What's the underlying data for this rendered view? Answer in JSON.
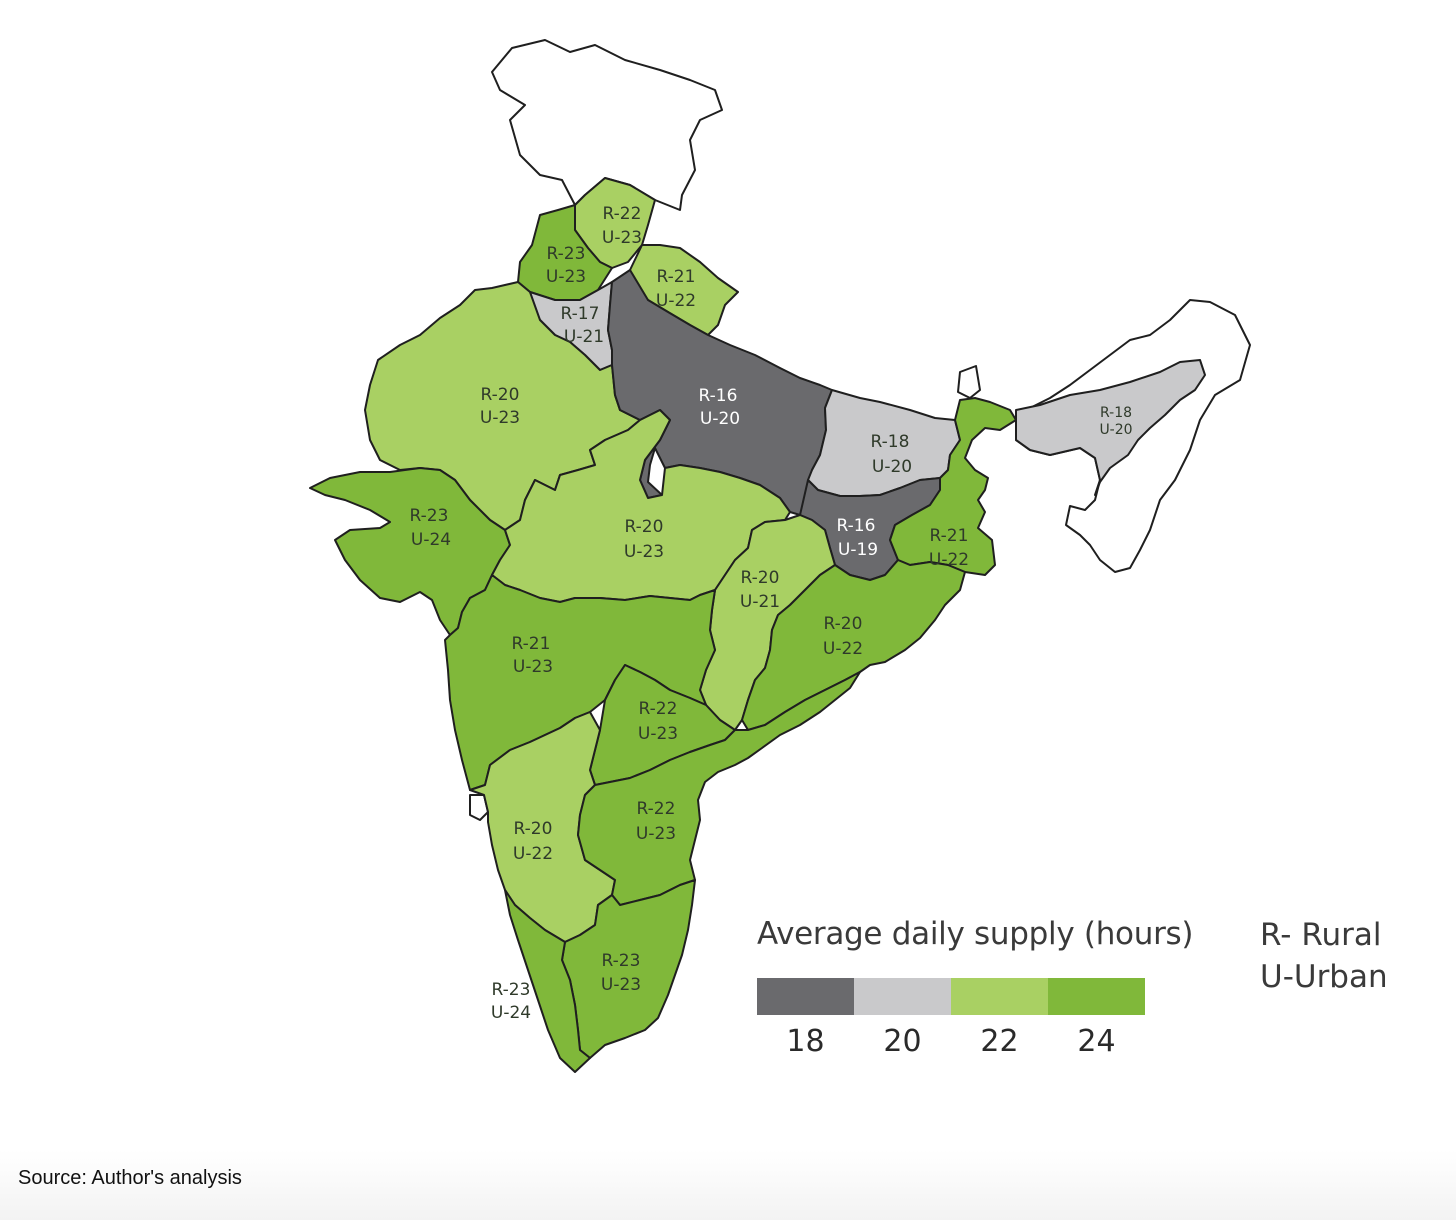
{
  "legend": {
    "title": "Average daily supply (hours)",
    "key_rural": "R- Rural",
    "key_urban": "U-Urban",
    "ticks": [
      "18",
      "20",
      "22",
      "24"
    ],
    "colors": [
      "#6a6a6d",
      "#c9c9cb",
      "#a9d063",
      "#80b83a"
    ]
  },
  "source": "Source: Author's analysis",
  "colors": {
    "dark_grey": "#6a6a6d",
    "light_grey": "#c9c9cb",
    "light_green": "#a9d063",
    "green": "#80b83a",
    "no_data": "#ffffff"
  },
  "regions": [
    {
      "id": "himachal",
      "rural": "R-22",
      "urban": "U-23"
    },
    {
      "id": "punjab",
      "rural": "R-23",
      "urban": "U-23"
    },
    {
      "id": "uttarakhand",
      "rural": "R-21",
      "urban": "U-22"
    },
    {
      "id": "haryana",
      "rural": "R-17",
      "urban": "U-21"
    },
    {
      "id": "rajasthan",
      "rural": "R-20",
      "urban": "U-23"
    },
    {
      "id": "uttar-pradesh",
      "rural": "R-16",
      "urban": "U-20"
    },
    {
      "id": "bihar",
      "rural": "R-18",
      "urban": "U-20"
    },
    {
      "id": "assam",
      "rural": "R-18",
      "urban": "U-20"
    },
    {
      "id": "gujarat",
      "rural": "R-23",
      "urban": "U-24"
    },
    {
      "id": "madhya-pradesh",
      "rural": "R-20",
      "urban": "U-23"
    },
    {
      "id": "jharkhand",
      "rural": "R-16",
      "urban": "U-19"
    },
    {
      "id": "west-bengal",
      "rural": "R-21",
      "urban": "U-22"
    },
    {
      "id": "chhattisgarh",
      "rural": "R-20",
      "urban": "U-21"
    },
    {
      "id": "odisha",
      "rural": "R-20",
      "urban": "U-22"
    },
    {
      "id": "maharashtra",
      "rural": "R-21",
      "urban": "U-23"
    },
    {
      "id": "telangana",
      "rural": "R-22",
      "urban": "U-23"
    },
    {
      "id": "karnataka",
      "rural": "R-20",
      "urban": "U-22"
    },
    {
      "id": "andhra-pradesh",
      "rural": "R-22",
      "urban": "U-23"
    },
    {
      "id": "tamil-nadu",
      "rural": "R-23",
      "urban": "U-23"
    },
    {
      "id": "kerala",
      "rural": "R-23",
      "urban": "U-24"
    }
  ]
}
